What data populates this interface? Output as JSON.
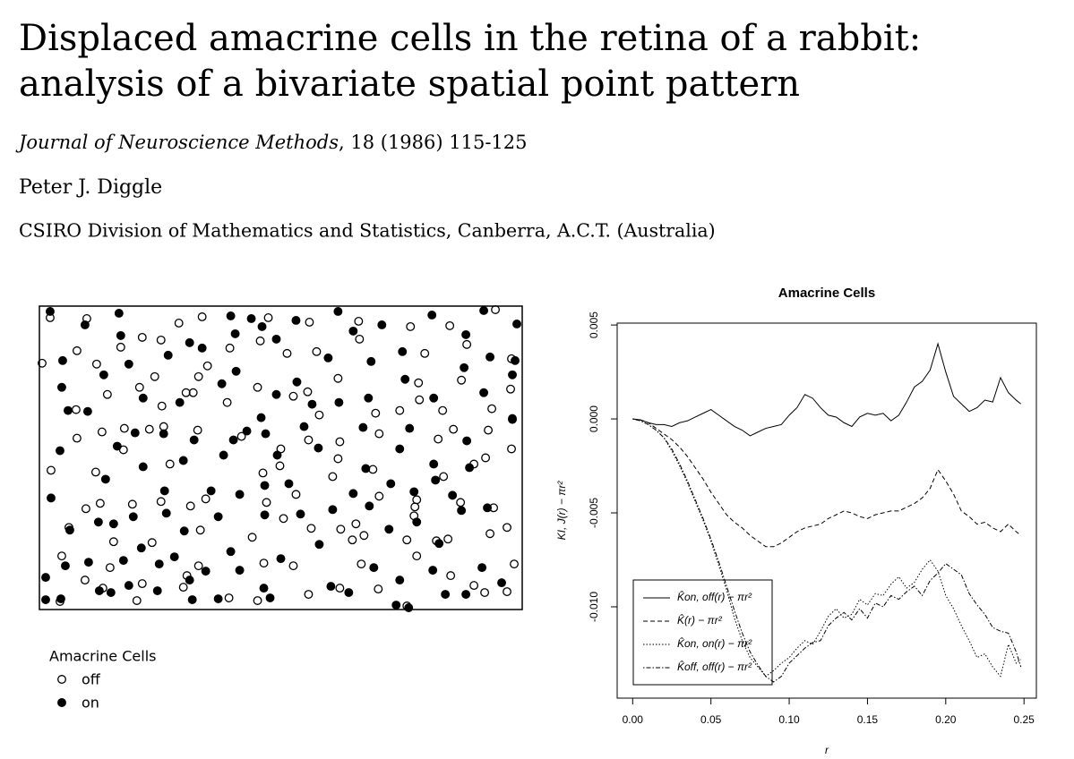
{
  "header": {
    "title": [
      "Displaced amacrine cells in the retina of a rabbit:",
      "analysis of a bivariate spatial point pattern"
    ],
    "journal": "Journal of Neuroscience Methods",
    "details": ", 18 (1986) 115-125",
    "author": "Peter J. Diggle",
    "affiliation": "CSIRO Division of Mathematics and Statistics, Canberra, A.C.T. (Australia)"
  },
  "chart_data": [
    {
      "type": "scatter",
      "legend_title": "Amacrine Cells",
      "legend": "below",
      "xlim": [
        0,
        540
      ],
      "ylim": [
        0,
        340
      ],
      "series": [
        {
          "name": "off",
          "marker": "open",
          "color": "#000000",
          "x": [
            12,
            53,
            156,
            182,
            256,
            302,
            357,
            415,
            459,
            510,
            42,
            64,
            91,
            115,
            136,
            213,
            247,
            277,
            310,
            358,
            431,
            478,
            528,
            3,
            129,
            112,
            188,
            164,
            178,
            244,
            300,
            334,
            424,
            472,
            527,
            76,
            41,
            137,
            172,
            210,
            284,
            313,
            376,
            403,
            425,
            451,
            506,
            70,
            42,
            95,
            123,
            139,
            177,
            226,
            270,
            301,
            336,
            380,
            446,
            463,
            502,
            529,
            528,
            13,
            63,
            94,
            146,
            269,
            334,
            373,
            486,
            499,
            52,
            68,
            104,
            136,
            169,
            186,
            250,
            254,
            287,
            328,
            380,
            420,
            452,
            471,
            508,
            33,
            83,
            126,
            180,
            238,
            273,
            304,
            337,
            354,
            411,
            444,
            457,
            523,
            25,
            79,
            165,
            178,
            251,
            284,
            363,
            360,
            350,
            422,
            504,
            531,
            51,
            71,
            161,
            115,
            212,
            244,
            301,
            336,
            379,
            460,
            498,
            523,
            23,
            109,
            411,
            422,
            419,
            486
          ],
          "y": [
            327,
            326,
            321,
            328,
            327,
            322,
            323,
            317,
            318,
            336,
            290,
            275,
            294,
            305,
            302,
            293,
            301,
            287,
            289,
            303,
            287,
            297,
            281,
            276,
            261,
            249,
            273,
            243,
            261,
            249,
            244,
            259,
            254,
            257,
            247,
            241,
            224,
            228,
            243,
            232,
            239,
            218,
            220,
            223,
            235,
            223,
            225,
            199,
            192,
            203,
            202,
            205,
            201,
            194,
            180,
            190,
            188,
            197,
            191,
            202,
            201,
            213,
            180,
            156,
            154,
            179,
            163,
            161,
            169,
            157,
            163,
            170,
            113,
            119,
            118,
            121,
            116,
            124,
            153,
            120,
            129,
            149,
            127,
            115,
            149,
            120,
            114,
            92,
            76,
            75,
            89,
            81,
            102,
            91,
            90,
            96,
            78,
            77,
            79,
            92,
            60,
            47,
            38,
            49,
            52,
            49,
            83,
            51,
            78,
            60,
            85,
            51,
            33,
            24,
            25,
            29,
            13,
            10,
            17,
            24,
            23,
            38,
            19,
            20,
            9,
            10,
            4,
            123,
            105,
            27
          ]
        },
        {
          "name": "on",
          "marker": "filled",
          "color": "#000000",
          "x": [
            12,
            89,
            51,
            214,
            237,
            287,
            334,
            497,
            534,
            383,
            439,
            91,
            168,
            219,
            249,
            351,
            477,
            26,
            144,
            182,
            265,
            323,
            371,
            406,
            504,
            72,
            100,
            220,
            475,
            529,
            25,
            116,
            204,
            265,
            288,
            368,
            409,
            497,
            32,
            54,
            157,
            248,
            305,
            335,
            441,
            529,
            532,
            87,
            173,
            217,
            253,
            296,
            362,
            414,
            478,
            107,
            23,
            139,
            232,
            161,
            206,
            266,
            312,
            403,
            441,
            74,
            116,
            192,
            252,
            279,
            365,
            443,
            481,
            13,
            140,
            224,
            351,
            393,
            419,
            462,
            34,
            66,
            83,
            105,
            142,
            162,
            200,
            252,
            292,
            328,
            369,
            422,
            472,
            501,
            114,
            151,
            214,
            313,
            391,
            447,
            29,
            55,
            94,
            134,
            186,
            224,
            270,
            374,
            440,
            495,
            7,
            67,
            100,
            132,
            168,
            251,
            326,
            403,
            477,
            517,
            7,
            24,
            80,
            171,
            200,
            258,
            346,
            399,
            454,
            413
          ],
          "y": [
            334,
            332,
            319,
            329,
            326,
            324,
            334,
            335,
            320,
            319,
            330,
            307,
            299,
            309,
            317,
            312,
            308,
            279,
            285,
            293,
            303,
            282,
            278,
            289,
            283,
            263,
            275,
            267,
            271,
            263,
            249,
            237,
            253,
            241,
            255,
            237,
            258,
            243,
            223,
            222,
            232,
            215,
            230,
            232,
            237,
            214,
            279,
            183,
            190,
            190,
            197,
            205,
            204,
            203,
            189,
            198,
            178,
            197,
            200,
            167,
            173,
            173,
            181,
            180,
            163,
            146,
            160,
            133,
            139,
            141,
            158,
            145,
            159,
            125,
            133,
            129,
            130,
            141,
            132,
            128,
            89,
            98,
            96,
            104,
            108,
            88,
            104,
            106,
            107,
            112,
            116,
            98,
            111,
            114,
            69,
            59,
            65,
            73,
            90,
            74,
            49,
            53,
            55,
            51,
            43,
            44,
            57,
            47,
            44,
            47,
            36,
            21,
            27,
            21,
            33,
            24,
            26,
            33,
            17,
            30,
            11,
            12,
            19,
            11,
            12,
            13,
            19,
            5,
            17,
            2
          ]
        }
      ]
    },
    {
      "type": "line",
      "title": "Amacrine Cells",
      "xlabel": "r",
      "ylabel": "KI, J(r) − πr²",
      "legend": "bottomleft",
      "xlim": [
        -0.0099,
        0.2579
      ],
      "ylim": [
        -0.01486,
        0.0051
      ],
      "xticks": [
        {
          "value": 0,
          "label": "0.00"
        },
        0.05,
        {
          "value": 0.1,
          "label": "0.10"
        },
        0.15,
        {
          "value": 0.2,
          "label": "0.20"
        },
        0.25
      ],
      "yticks": [
        {
          "value": -0.01,
          "label": "-0.010"
        },
        -0.005,
        {
          "value": 0,
          "label": "0.000"
        },
        0.005
      ],
      "x": [
        0,
        0.005,
        0.01,
        0.015,
        0.02,
        0.025,
        0.03,
        0.035,
        0.04,
        0.045,
        0.05,
        0.055,
        0.06,
        0.065,
        0.07,
        0.075,
        0.08,
        0.085,
        0.09,
        0.095,
        0.1,
        0.105,
        0.11,
        0.115,
        0.12,
        0.125,
        0.13,
        0.135,
        0.14,
        0.145,
        0.15,
        0.155,
        0.16,
        0.165,
        0.17,
        0.175,
        0.18,
        0.185,
        0.19,
        0.195,
        0.2,
        0.205,
        0.21,
        0.215,
        0.22,
        0.225,
        0.23,
        0.235,
        0.24,
        0.245,
        0.248
      ],
      "series": [
        {
          "name": "K̂on, off(r) − πr²",
          "color": "#000000",
          "dash": "solid",
          "values": [
            0,
            -5e-05,
            -0.0002,
            -0.0003,
            -0.0003,
            -0.0004,
            -0.0002,
            -0.0001,
            0.0001,
            0.0003,
            0.0005,
            0.0002,
            -0.0001,
            -0.0004,
            -0.0006,
            -0.0009,
            -0.0007,
            -0.0005,
            -0.0004,
            -0.0003,
            0.0002,
            0.0006,
            0.0013,
            0.0011,
            0.0006,
            0.0002,
            0.0001,
            -0.0002,
            -0.0004,
            0.0001,
            0.0003,
            0.0002,
            0.0003,
            -0.0001,
            0.0002,
            0.0009,
            0.0017,
            0.002,
            0.0026,
            0.004,
            0.0025,
            0.0012,
            0.0008,
            0.0004,
            0.0006,
            0.001,
            0.0009,
            0.0022,
            0.0014,
            0.001,
            0.0008
          ]
        },
        {
          "name": "K̂(r) − πr²",
          "color": "#000000",
          "dash": "dashed",
          "values": [
            0,
            -5e-05,
            -0.0002,
            -0.0005,
            -0.0008,
            -0.0011,
            -0.0015,
            -0.002,
            -0.0026,
            -0.0032,
            -0.0039,
            -0.0045,
            -0.0051,
            -0.0055,
            -0.0058,
            -0.0062,
            -0.0065,
            -0.0068,
            -0.0068,
            -0.0066,
            -0.0063,
            -0.006,
            -0.0058,
            -0.0057,
            -0.0056,
            -0.0053,
            -0.0051,
            -0.0049,
            -0.005,
            -0.0052,
            -0.0053,
            -0.0051,
            -0.005,
            -0.0049,
            -0.0049,
            -0.0047,
            -0.0045,
            -0.0042,
            -0.0037,
            -0.0027,
            -0.0033,
            -0.004,
            -0.0049,
            -0.0052,
            -0.0056,
            -0.0055,
            -0.0058,
            -0.006,
            -0.0056,
            -0.006,
            -0.0062
          ]
        },
        {
          "name": "K̂on, on(r) − πr²",
          "color": "#000000",
          "dash": "dotted",
          "values": [
            0,
            -0.0001,
            -0.0003,
            -0.0006,
            -0.001,
            -0.0017,
            -0.0025,
            -0.0034,
            -0.0044,
            -0.0054,
            -0.0065,
            -0.0078,
            -0.0091,
            -0.0106,
            -0.0118,
            -0.0127,
            -0.0132,
            -0.0137,
            -0.0134,
            -0.013,
            -0.0127,
            -0.0122,
            -0.0118,
            -0.012,
            -0.0113,
            -0.0105,
            -0.0101,
            -0.0106,
            -0.0104,
            -0.0096,
            -0.0099,
            -0.0093,
            -0.0094,
            -0.0088,
            -0.0084,
            -0.009,
            -0.0087,
            -0.008,
            -0.0075,
            -0.0081,
            -0.0094,
            -0.0101,
            -0.011,
            -0.0118,
            -0.0127,
            -0.0125,
            -0.0132,
            -0.0137,
            -0.012,
            -0.013,
            -0.0128
          ]
        },
        {
          "name": "K̂off, off(r) − πr²",
          "color": "#000000",
          "dash": "dotdash",
          "values": [
            0,
            -0.0001,
            -0.0003,
            -0.0006,
            -0.001,
            -0.0016,
            -0.0024,
            -0.0033,
            -0.0043,
            -0.0053,
            -0.0064,
            -0.0076,
            -0.0089,
            -0.0102,
            -0.0114,
            -0.0124,
            -0.0131,
            -0.0137,
            -0.014,
            -0.0137,
            -0.013,
            -0.0126,
            -0.0122,
            -0.0119,
            -0.0118,
            -0.011,
            -0.0106,
            -0.0103,
            -0.0107,
            -0.0101,
            -0.0106,
            -0.0098,
            -0.01,
            -0.0094,
            -0.0096,
            -0.0092,
            -0.0089,
            -0.0094,
            -0.0086,
            -0.0082,
            -0.0077,
            -0.008,
            -0.0083,
            -0.0093,
            -0.0099,
            -0.0104,
            -0.0111,
            -0.0113,
            -0.0114,
            -0.0124,
            -0.0132
          ]
        }
      ]
    }
  ]
}
